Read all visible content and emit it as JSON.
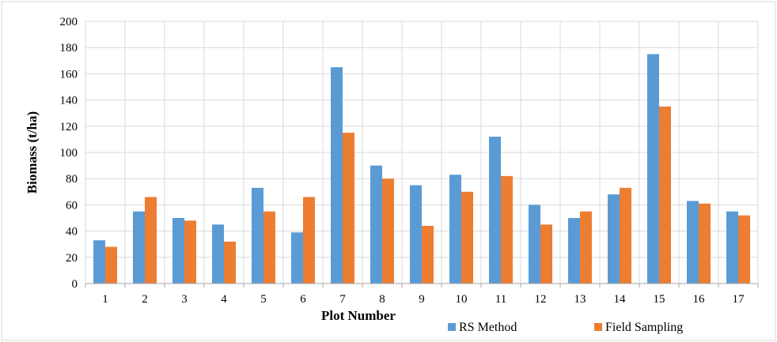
{
  "chart_data": {
    "type": "bar",
    "xlabel": "Plot Number",
    "ylabel": "Biomass (t/ha)",
    "ylim": [
      0,
      200
    ],
    "yticks": [
      0,
      20,
      40,
      60,
      80,
      100,
      120,
      140,
      160,
      180,
      200
    ],
    "grid": true,
    "legend_position": "bottom-right",
    "categories": [
      "1",
      "2",
      "3",
      "4",
      "5",
      "6",
      "7",
      "8",
      "9",
      "10",
      "11",
      "12",
      "13",
      "14",
      "15",
      "16",
      "17"
    ],
    "series": [
      {
        "name": "RS Method",
        "color": "#5B9BD5",
        "values": [
          33,
          55,
          50,
          45,
          73,
          39,
          165,
          90,
          75,
          83,
          112,
          60,
          50,
          68,
          175,
          63,
          55
        ]
      },
      {
        "name": "Field Sampling",
        "color": "#ED7D31",
        "values": [
          28,
          66,
          48,
          32,
          55,
          66,
          115,
          80,
          44,
          70,
          82,
          45,
          55,
          73,
          135,
          61,
          52
        ]
      }
    ]
  }
}
